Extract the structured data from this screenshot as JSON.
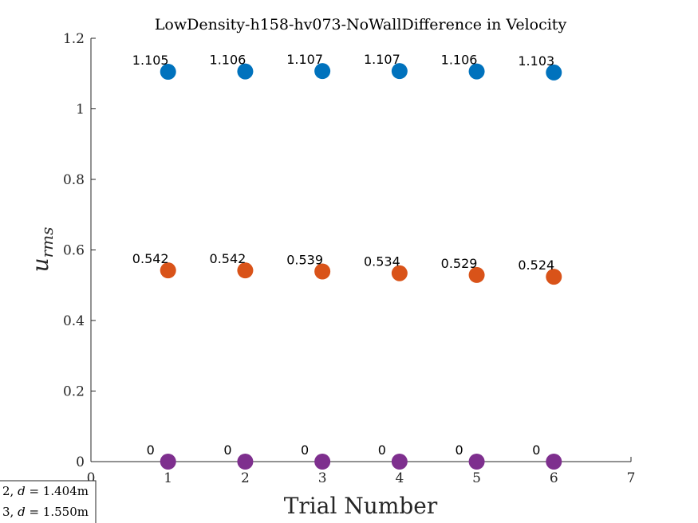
{
  "chart_data": {
    "type": "scatter",
    "title": "LowDensity-h158-hv073-NoWallDifference in Velocity",
    "xlabel": "Trial Number",
    "ylabel": "u",
    "ylabel_sub": "rms",
    "xlim": [
      0,
      7
    ],
    "ylim": [
      0,
      1.2
    ],
    "xticks": [
      "0",
      "1",
      "2",
      "3",
      "4",
      "5",
      "6",
      "7"
    ],
    "yticks": [
      "0",
      "0.2",
      "0.4",
      "0.6",
      "0.8",
      "1",
      "1.2"
    ],
    "x": [
      1,
      2,
      3,
      4,
      5,
      6
    ],
    "series": [
      {
        "color": "#0072BD",
        "values": [
          1.105,
          1.106,
          1.107,
          1.107,
          1.106,
          1.103
        ],
        "labels": [
          "1.105",
          "1.106",
          "1.107",
          "1.107",
          "1.106",
          "1.103"
        ]
      },
      {
        "color": "#D95319",
        "values": [
          0.542,
          0.542,
          0.539,
          0.534,
          0.529,
          0.524
        ],
        "labels": [
          "0.542",
          "0.542",
          "0.539",
          "0.534",
          "0.529",
          "0.524"
        ]
      },
      {
        "color": "#7E2F8E",
        "values": [
          0,
          0,
          0,
          0,
          0,
          0
        ],
        "labels": [
          "0",
          "0",
          "0",
          "0",
          "0",
          "0"
        ]
      }
    ],
    "legend": {
      "placement": "bottom-left",
      "entries": [
        {
          "prefix": "2, ",
          "var": "d",
          "suffix": " = 1.404m"
        },
        {
          "prefix": "3, ",
          "var": "d",
          "suffix": " = 1.550m"
        }
      ]
    },
    "grid": false
  }
}
